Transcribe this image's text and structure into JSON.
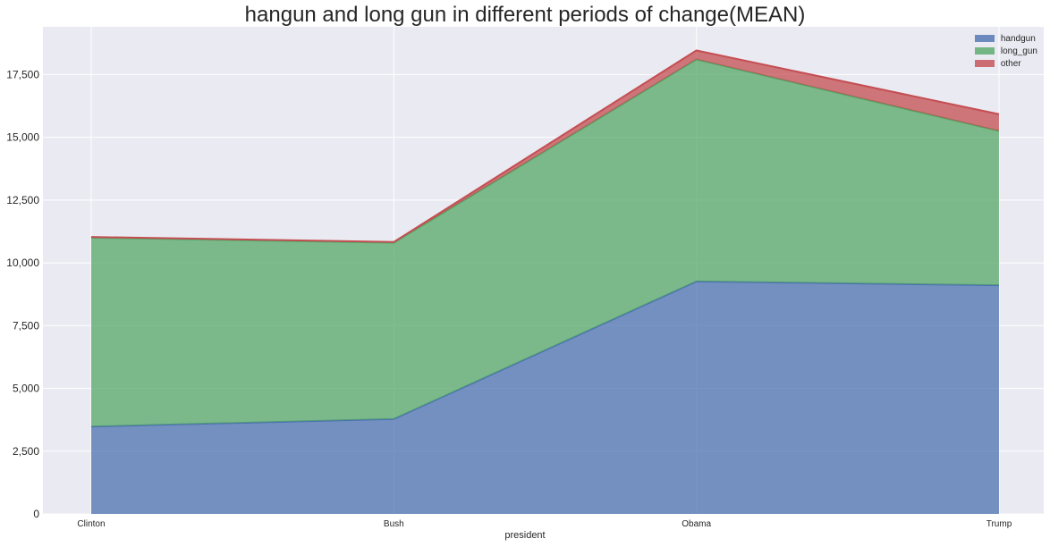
{
  "title": "hangun and long gun in different periods of change(MEAN)",
  "chart_data": {
    "type": "area",
    "stacked": true,
    "title": "hangun and long gun in different periods of change(MEAN)",
    "xlabel": "president",
    "ylabel": "",
    "categories": [
      "Clinton",
      "Bush",
      "Obama",
      "Trump"
    ],
    "series": [
      {
        "name": "handgun",
        "color": "#4c72b0",
        "values": [
          3480,
          3780,
          9260,
          9110
        ]
      },
      {
        "name": "long_gun",
        "color": "#55a868",
        "values": [
          7520,
          7020,
          8840,
          6140
        ]
      },
      {
        "name": "other",
        "color": "#c44e52",
        "values": [
          30,
          30,
          360,
          670
        ]
      }
    ],
    "ylim": [
      0,
      19400
    ],
    "yticks": [
      0,
      2500,
      5000,
      7500,
      10000,
      12500,
      15000,
      17500
    ],
    "ytick_labels": [
      "0",
      "2,500",
      "5,000",
      "7,500",
      "10,000",
      "12,500",
      "15,000",
      "17,500"
    ],
    "grid": true,
    "legend_position": "top-right",
    "background": "#eaeaf2"
  }
}
